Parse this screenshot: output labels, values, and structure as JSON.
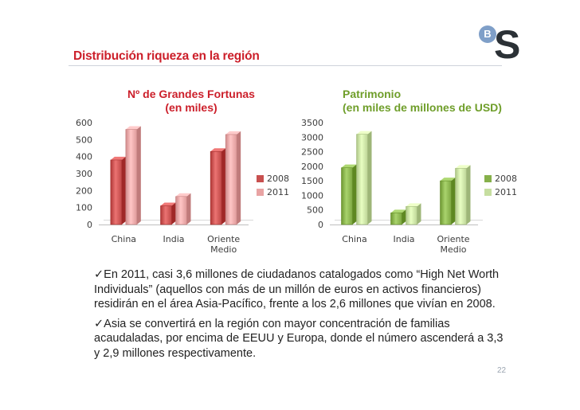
{
  "slide": {
    "title": "Distribución riqueza en la región",
    "logo_letters": {
      "small": "B",
      "large": "S"
    },
    "page_number": "22"
  },
  "bullets": [
    {
      "check": "✓",
      "text": "En 2011, casi 3,6 millones de ciudadanos catalogados como “High Net Worth Individuals” (aquellos con más de un millón de euros en activos financieros) residirán en el área Asia-Pacífico, frente a los 2,6 millones que vivían en 2008."
    },
    {
      "check": "✓",
      "text": "Asia se convertirá en la región con mayor concentración de familias acaudaladas, por encima de EEUU y Europa, donde el número ascenderá a 3,3 y 2,9 millones respectivamente."
    }
  ],
  "chart_data": [
    {
      "type": "bar",
      "title": [
        "Nº de Grandes Fortunas",
        "(en miles)"
      ],
      "categories": [
        [
          "China"
        ],
        [
          "India"
        ],
        [
          "Oriente",
          "Medio"
        ]
      ],
      "series": [
        {
          "name": "2008",
          "values": [
            380,
            110,
            430
          ],
          "color": "#c8504f"
        },
        {
          "name": "2011",
          "values": [
            560,
            165,
            530
          ],
          "color": "#e8a3a3"
        }
      ],
      "ylim": [
        0,
        600
      ],
      "yticks": [
        0,
        100,
        200,
        300,
        400,
        500,
        600
      ],
      "legend": "right",
      "grid": false
    },
    {
      "type": "bar",
      "title": [
        "Patrimonio",
        "(en miles de millones de USD)"
      ],
      "categories": [
        [
          "China"
        ],
        [
          "India"
        ],
        [
          "Oriente",
          "Medio"
        ]
      ],
      "series": [
        {
          "name": "2008",
          "values": [
            1950,
            400,
            1500
          ],
          "color": "#86b04a"
        },
        {
          "name": "2011",
          "values": [
            3100,
            620,
            1930
          ],
          "color": "#c6dea0"
        }
      ],
      "ylim": [
        0,
        3500
      ],
      "yticks": [
        0,
        500,
        1000,
        1500,
        2000,
        2500,
        3000,
        3500
      ],
      "legend": "right",
      "grid": false
    }
  ]
}
